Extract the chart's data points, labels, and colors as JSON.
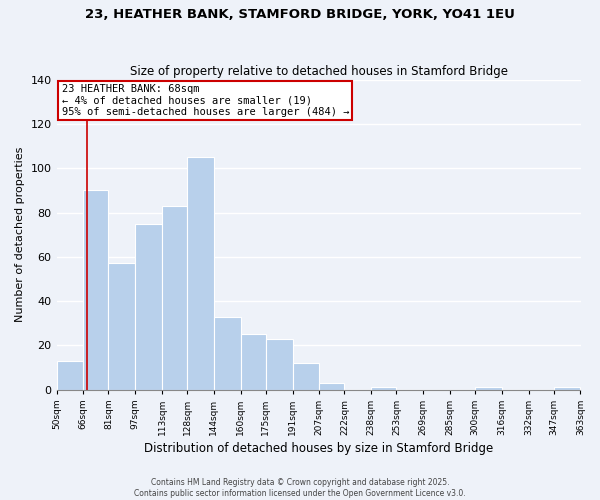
{
  "title1": "23, HEATHER BANK, STAMFORD BRIDGE, YORK, YO41 1EU",
  "title2": "Size of property relative to detached houses in Stamford Bridge",
  "xlabel": "Distribution of detached houses by size in Stamford Bridge",
  "ylabel": "Number of detached properties",
  "bar_values": [
    13,
    90,
    57,
    75,
    83,
    105,
    33,
    25,
    23,
    12,
    3,
    0,
    1,
    0,
    0,
    0,
    1,
    0,
    0,
    1
  ],
  "bin_edges": [
    50,
    66,
    81,
    97,
    113,
    128,
    144,
    160,
    175,
    191,
    207,
    222,
    238,
    253,
    269,
    285,
    300,
    316,
    332,
    347,
    363
  ],
  "bin_labels": [
    "50sqm",
    "66sqm",
    "81sqm",
    "97sqm",
    "113sqm",
    "128sqm",
    "144sqm",
    "160sqm",
    "175sqm",
    "191sqm",
    "207sqm",
    "222sqm",
    "238sqm",
    "253sqm",
    "269sqm",
    "285sqm",
    "300sqm",
    "316sqm",
    "332sqm",
    "347sqm",
    "363sqm"
  ],
  "bar_color": "#b8d0eb",
  "bar_edge_color": "#ffffff",
  "property_line_x": 68,
  "property_line_color": "#cc0000",
  "annotation_line1": "23 HEATHER BANK: 68sqm",
  "annotation_line2": "← 4% of detached houses are smaller (19)",
  "annotation_line3": "95% of semi-detached houses are larger (484) →",
  "annotation_box_color": "#ffffff",
  "annotation_box_edge_color": "#cc0000",
  "ylim": [
    0,
    140
  ],
  "yticks": [
    0,
    20,
    40,
    60,
    80,
    100,
    120,
    140
  ],
  "footer1": "Contains HM Land Registry data © Crown copyright and database right 2025.",
  "footer2": "Contains public sector information licensed under the Open Government Licence v3.0.",
  "bg_color": "#eef2f9",
  "grid_color": "#ffffff",
  "title1_fontsize": 9.5,
  "title2_fontsize": 8.5
}
